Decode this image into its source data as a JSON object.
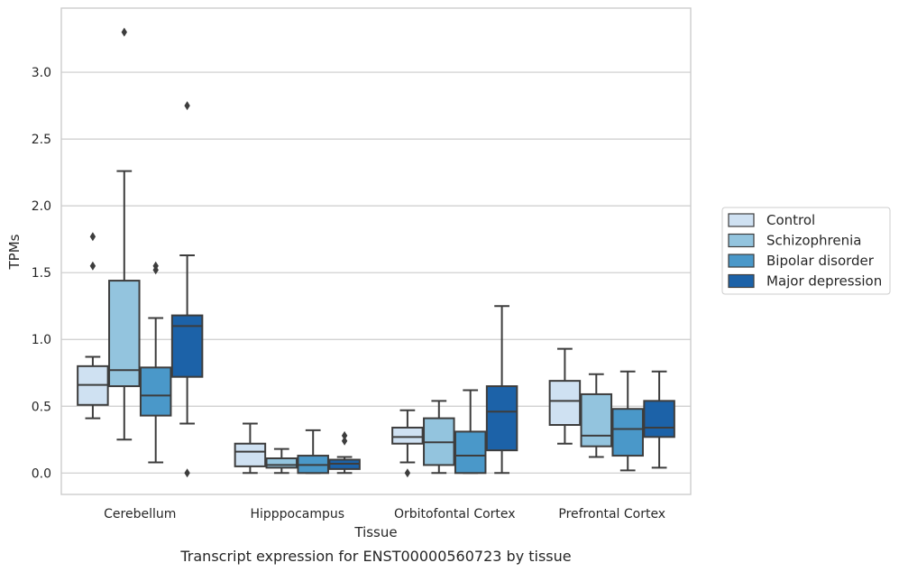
{
  "caption": "Transcript expression for ENST00000560723 by tissue",
  "chart_data": {
    "type": "box",
    "xlabel": "Tissue",
    "ylabel": "TPMs",
    "ylim": [
      -0.16,
      3.48
    ],
    "yticks": [
      0.0,
      0.5,
      1.0,
      1.5,
      2.0,
      2.5,
      3.0
    ],
    "ytick_labels": [
      "0.0",
      "0.5",
      "1.0",
      "1.5",
      "2.0",
      "2.5",
      "3.0"
    ],
    "grid": "horizontal",
    "legend_position": "right",
    "categories": [
      "Cerebellum",
      "Hipppocampus",
      "Orbitofontal Cortex",
      "Prefrontal Cortex"
    ],
    "series": [
      {
        "name": "Control",
        "color": "#cfe1f2",
        "boxes": [
          {
            "whislo": 0.41,
            "q1": 0.51,
            "med": 0.66,
            "q3": 0.8,
            "whishi": 0.87,
            "fliers": [
              1.77,
              1.55
            ]
          },
          {
            "whislo": 0.0,
            "q1": 0.05,
            "med": 0.16,
            "q3": 0.22,
            "whishi": 0.37,
            "fliers": []
          },
          {
            "whislo": 0.08,
            "q1": 0.22,
            "med": 0.27,
            "q3": 0.34,
            "whishi": 0.47,
            "fliers": [
              0.0
            ]
          },
          {
            "whislo": 0.22,
            "q1": 0.36,
            "med": 0.54,
            "q3": 0.69,
            "whishi": 0.93,
            "fliers": []
          }
        ]
      },
      {
        "name": "Schizophrenia",
        "color": "#93c4de",
        "boxes": [
          {
            "whislo": 0.25,
            "q1": 0.65,
            "med": 0.77,
            "q3": 1.44,
            "whishi": 2.26,
            "fliers": [
              3.3
            ]
          },
          {
            "whislo": 0.0,
            "q1": 0.04,
            "med": 0.06,
            "q3": 0.11,
            "whishi": 0.18,
            "fliers": []
          },
          {
            "whislo": 0.0,
            "q1": 0.06,
            "med": 0.23,
            "q3": 0.41,
            "whishi": 0.54,
            "fliers": []
          },
          {
            "whislo": 0.12,
            "q1": 0.2,
            "med": 0.28,
            "q3": 0.59,
            "whishi": 0.74,
            "fliers": []
          }
        ]
      },
      {
        "name": "Bipolar disorder",
        "color": "#4a98c9",
        "boxes": [
          {
            "whislo": 0.08,
            "q1": 0.43,
            "med": 0.58,
            "q3": 0.79,
            "whishi": 1.16,
            "fliers": [
              1.55,
              1.52
            ]
          },
          {
            "whislo": 0.0,
            "q1": 0.0,
            "med": 0.06,
            "q3": 0.13,
            "whishi": 0.32,
            "fliers": []
          },
          {
            "whislo": 0.0,
            "q1": 0.0,
            "med": 0.13,
            "q3": 0.31,
            "whishi": 0.62,
            "fliers": []
          },
          {
            "whislo": 0.02,
            "q1": 0.13,
            "med": 0.33,
            "q3": 0.48,
            "whishi": 0.76,
            "fliers": []
          }
        ]
      },
      {
        "name": "Major depression",
        "color": "#1c62a8",
        "boxes": [
          {
            "whislo": 0.37,
            "q1": 0.72,
            "med": 1.1,
            "q3": 1.18,
            "whishi": 1.63,
            "fliers": [
              2.75,
              0.0
            ]
          },
          {
            "whislo": 0.0,
            "q1": 0.03,
            "med": 0.07,
            "q3": 0.1,
            "whishi": 0.12,
            "fliers": [
              0.28,
              0.24
            ]
          },
          {
            "whislo": 0.0,
            "q1": 0.17,
            "med": 0.46,
            "q3": 0.65,
            "whishi": 1.25,
            "fliers": []
          },
          {
            "whislo": 0.04,
            "q1": 0.27,
            "med": 0.34,
            "q3": 0.54,
            "whishi": 0.76,
            "fliers": []
          }
        ]
      }
    ]
  }
}
